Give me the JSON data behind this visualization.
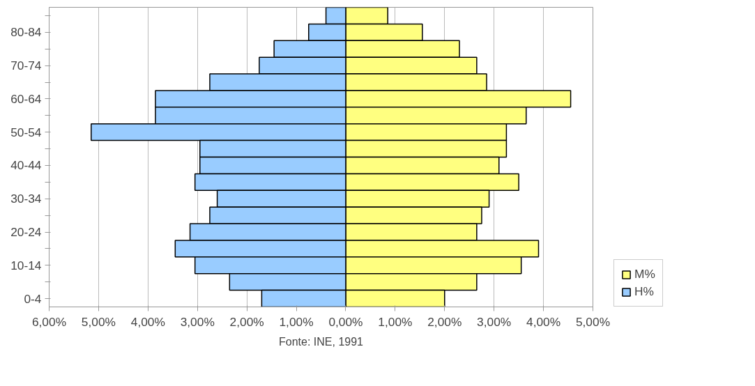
{
  "chart_data": {
    "type": "bar",
    "orientation": "horizontal",
    "categories": [
      null,
      "80-84",
      null,
      "70-74",
      null,
      "60-64",
      null,
      "50-54",
      null,
      "40-44",
      null,
      "30-34",
      null,
      "20-24",
      null,
      "10-14",
      null,
      "0-4"
    ],
    "series": [
      {
        "name": "M%",
        "color": "#ffff80",
        "values": [
          0.85,
          1.55,
          2.3,
          2.65,
          2.85,
          4.55,
          3.65,
          3.25,
          3.25,
          3.1,
          3.5,
          2.9,
          2.75,
          2.65,
          3.9,
          3.55,
          2.65,
          2.0
        ]
      },
      {
        "name": "H%",
        "color": "#99ccff",
        "values": [
          -0.4,
          -0.75,
          -1.45,
          -1.75,
          -2.75,
          -3.85,
          -3.85,
          -5.15,
          -2.95,
          -2.95,
          -3.05,
          -2.6,
          -2.75,
          -3.15,
          -3.45,
          -3.05,
          -2.35,
          -1.7
        ]
      }
    ],
    "xlim": [
      -6,
      5
    ],
    "xticks": [
      {
        "value": -6,
        "label": "6,00%"
      },
      {
        "value": -5,
        "label": "5,00%"
      },
      {
        "value": -4,
        "label": "4,00%"
      },
      {
        "value": -3,
        "label": "3,00%"
      },
      {
        "value": -2,
        "label": "2,00%"
      },
      {
        "value": -1,
        "label": "1,00%"
      },
      {
        "value": 0,
        "label": "0,00%"
      },
      {
        "value": 1,
        "label": "1,00%"
      },
      {
        "value": 2,
        "label": "2,00%"
      },
      {
        "value": 3,
        "label": "3,00%"
      },
      {
        "value": 4,
        "label": "4,00%"
      },
      {
        "value": 5,
        "label": "5,00%"
      }
    ],
    "stacked": true,
    "grid": "x",
    "legend": "right",
    "annotations": [
      "Fonte: INE, 1991"
    ]
  }
}
